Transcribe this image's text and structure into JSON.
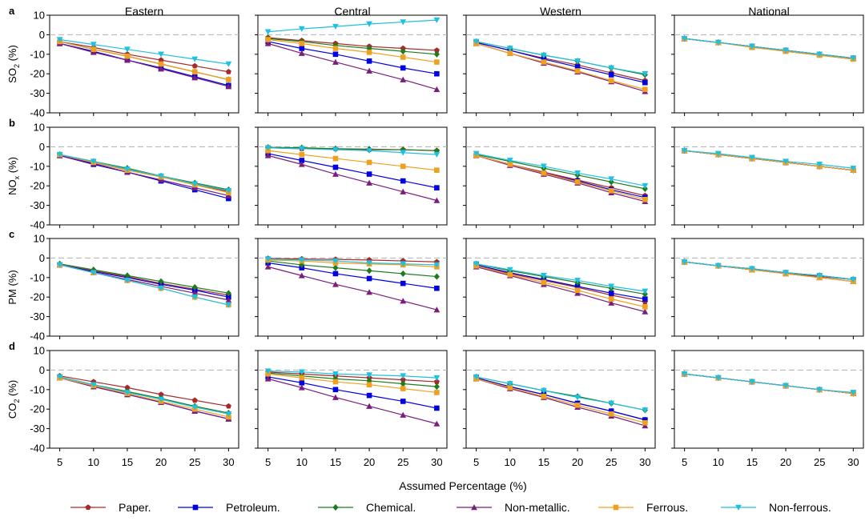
{
  "chart_data": {
    "type": "line",
    "columns": [
      "Eastern",
      "Central",
      "Western",
      "National"
    ],
    "row_letters": [
      "a",
      "b",
      "c",
      "d"
    ],
    "row_ylabels": [
      {
        "base": "SO",
        "sub": "2",
        "unit": " (%)"
      },
      {
        "base": "NO",
        "sub": "x",
        "unit": " (%)"
      },
      {
        "base": "PM",
        "sub": "",
        "unit": " (%)"
      },
      {
        "base": "CO",
        "sub": "2",
        "unit": " (%)"
      }
    ],
    "ylim": [
      -40,
      10
    ],
    "yticks": [
      10,
      0,
      -10,
      -20,
      -30,
      -40
    ],
    "x": [
      5,
      10,
      15,
      20,
      25,
      30
    ],
    "xticks": [
      5,
      10,
      15,
      20,
      25,
      30
    ],
    "xlabel": "Assumed Percentage (%)",
    "reference_line": 0,
    "series_meta": [
      {
        "name": "Paper.",
        "color": "#a52a2a",
        "marker": "pentagon"
      },
      {
        "name": "Petroleum.",
        "color": "#0000e0",
        "marker": "square"
      },
      {
        "name": "Chemical.",
        "color": "#1e7b1e",
        "marker": "diamond"
      },
      {
        "name": "Non-metallic.",
        "color": "#7b1e7b",
        "marker": "triangle-up"
      },
      {
        "name": "Ferrous.",
        "color": "#f0a020",
        "marker": "x-square"
      },
      {
        "name": "Non-ferrous.",
        "color": "#20c0e0",
        "marker": "triangle-down"
      }
    ],
    "panels": [
      [
        [
          [
            -3.5,
            -6.5,
            -10,
            -13,
            -16,
            -19
          ],
          [
            -4.5,
            -8.5,
            -13,
            -17,
            -21.5,
            -26
          ],
          [
            -3.5,
            -7.5,
            -11,
            -15,
            -19,
            -23
          ],
          [
            -4.5,
            -9,
            -13,
            -17.5,
            -22,
            -26.5
          ],
          [
            -3.5,
            -7.5,
            -11,
            -15,
            -19,
            -23
          ],
          [
            -2.5,
            -5,
            -7.5,
            -10,
            -12.5,
            -15
          ]
        ],
        [
          [
            -1.5,
            -3,
            -4.5,
            -6,
            -7,
            -8
          ],
          [
            -3.5,
            -7,
            -10,
            -13.5,
            -17,
            -20
          ],
          [
            -2,
            -3.5,
            -5.5,
            -7,
            -8.5,
            -10
          ],
          [
            -4.5,
            -9.5,
            -14,
            -18.5,
            -23,
            -28
          ],
          [
            -2.5,
            -4.5,
            -7,
            -9,
            -11.5,
            -14
          ],
          [
            1.5,
            3,
            4.2,
            5.5,
            6.5,
            7.5
          ]
        ],
        [
          [
            -4,
            -8,
            -12,
            -15.5,
            -19.5,
            -23.5
          ],
          [
            -4,
            -8,
            -12.5,
            -16.5,
            -20.5,
            -24.5
          ],
          [
            -3.5,
            -7,
            -10.5,
            -13.5,
            -17,
            -20.5
          ],
          [
            -4.5,
            -9.5,
            -14.5,
            -19,
            -24,
            -29
          ],
          [
            -4.5,
            -9.5,
            -14,
            -18.5,
            -23.5,
            -28
          ],
          [
            -3.5,
            -7,
            -10.5,
            -13.5,
            -17,
            -20
          ]
        ],
        [
          [
            -2,
            -4,
            -6,
            -8.5,
            -10.5,
            -12.5
          ],
          [
            -2,
            -4,
            -6,
            -8,
            -10,
            -12
          ],
          [
            -2,
            -4,
            -6,
            -8,
            -10,
            -12
          ],
          [
            -2,
            -4,
            -6,
            -8,
            -10,
            -12
          ],
          [
            -2,
            -4,
            -6.5,
            -8.5,
            -10.5,
            -12.5
          ],
          [
            -2,
            -4,
            -6,
            -8,
            -10,
            -12
          ]
        ]
      ],
      [
        [
          [
            -4,
            -8,
            -12,
            -15,
            -19,
            -23
          ],
          [
            -4.5,
            -9,
            -13,
            -17.5,
            -22,
            -26.5
          ],
          [
            -4,
            -7.5,
            -11,
            -15,
            -18.5,
            -22
          ],
          [
            -4.5,
            -8.5,
            -13,
            -17,
            -21,
            -25
          ],
          [
            -4,
            -8,
            -12,
            -15.5,
            -19.5,
            -23.5
          ],
          [
            -4,
            -7.5,
            -11.5,
            -15,
            -19,
            -22.5
          ]
        ],
        [
          [
            -0.5,
            -1,
            -1,
            -1.5,
            -1.5,
            -2
          ],
          [
            -3.5,
            -7,
            -10.5,
            -14,
            -17.5,
            -21
          ],
          [
            -0.3,
            -0.5,
            -1,
            -1.2,
            -1.5,
            -2
          ],
          [
            -4.5,
            -9,
            -14,
            -18.5,
            -23,
            -27.5
          ],
          [
            -2,
            -4,
            -6,
            -8,
            -10,
            -12
          ],
          [
            -0.5,
            -1,
            -1.5,
            -2,
            -3,
            -4
          ]
        ],
        [
          [
            -4.5,
            -9,
            -13,
            -17,
            -21,
            -25
          ],
          [
            -4.5,
            -9,
            -13.5,
            -17.5,
            -22,
            -26
          ],
          [
            -4,
            -7.5,
            -11,
            -14.5,
            -18,
            -21.5
          ],
          [
            -4.5,
            -9.5,
            -14,
            -18.5,
            -23.5,
            -28
          ],
          [
            -4.5,
            -9,
            -13.5,
            -18,
            -22.5,
            -27
          ],
          [
            -3.5,
            -7,
            -10,
            -13.5,
            -16.5,
            -20
          ]
        ],
        [
          [
            -2,
            -4,
            -6,
            -8,
            -10,
            -12
          ],
          [
            -2,
            -4,
            -6,
            -8,
            -10,
            -12
          ],
          [
            -2,
            -4,
            -6,
            -8,
            -10,
            -12
          ],
          [
            -2,
            -4,
            -6,
            -8,
            -10,
            -12
          ],
          [
            -2,
            -4,
            -6,
            -8,
            -10,
            -12
          ],
          [
            -2,
            -3.5,
            -5.5,
            -7.5,
            -9,
            -11
          ]
        ]
      ],
      [
        [
          [
            -3.5,
            -6.5,
            -9.5,
            -13,
            -16,
            -19
          ],
          [
            -3.5,
            -7,
            -10,
            -13.5,
            -16.5,
            -20
          ],
          [
            -3,
            -6,
            -9,
            -12,
            -15,
            -18
          ],
          [
            -3.5,
            -7.5,
            -11,
            -14.5,
            -18,
            -21.5
          ],
          [
            -3.5,
            -7.5,
            -11.5,
            -15.5,
            -20,
            -24
          ],
          [
            -3.5,
            -7.5,
            -11.5,
            -15.5,
            -20,
            -24
          ]
        ],
        [
          [
            -0.2,
            -0.5,
            -0.7,
            -1,
            -1.5,
            -2
          ],
          [
            -2.5,
            -5,
            -8,
            -10.5,
            -13,
            -15.5
          ],
          [
            -1.5,
            -3.5,
            -5,
            -6.5,
            -8,
            -9.5
          ],
          [
            -4.5,
            -9,
            -13.5,
            -17.5,
            -22,
            -26.5
          ],
          [
            -1,
            -1.5,
            -2.5,
            -3,
            -3.5,
            -4.5
          ],
          [
            -0.5,
            -1,
            -1.5,
            -2.5,
            -3,
            -3.5
          ]
        ],
        [
          [
            -4,
            -8,
            -11.5,
            -15,
            -19,
            -22.5
          ],
          [
            -3.5,
            -7.5,
            -11,
            -14.5,
            -18,
            -21
          ],
          [
            -3,
            -6.5,
            -9.5,
            -12.5,
            -15.5,
            -18.5
          ],
          [
            -4.5,
            -9,
            -13.5,
            -18,
            -23,
            -27.5
          ],
          [
            -4,
            -8.5,
            -12.5,
            -16.5,
            -21,
            -25
          ],
          [
            -3,
            -6,
            -9,
            -11.5,
            -14.5,
            -17
          ]
        ],
        [
          [
            -2,
            -4,
            -6,
            -7.5,
            -9.5,
            -11
          ],
          [
            -2,
            -4,
            -5.5,
            -7.5,
            -9,
            -11
          ],
          [
            -2,
            -4,
            -5.5,
            -7.5,
            -9,
            -11
          ],
          [
            -2,
            -4,
            -6,
            -8,
            -10,
            -12
          ],
          [
            -2,
            -4,
            -6,
            -8,
            -10,
            -12
          ],
          [
            -2,
            -4,
            -5.5,
            -7.5,
            -9,
            -11
          ]
        ]
      ],
      [
        [
          [
            -3,
            -6,
            -9,
            -12.5,
            -15.5,
            -18.5
          ],
          [
            -4,
            -8.5,
            -12.5,
            -16.5,
            -21,
            -25
          ],
          [
            -3.5,
            -7.5,
            -11,
            -14.5,
            -18.5,
            -22
          ],
          [
            -4,
            -8.5,
            -12.5,
            -16.5,
            -21,
            -25
          ],
          [
            -4,
            -8,
            -12,
            -16,
            -20,
            -24
          ],
          [
            -3.5,
            -7.5,
            -11.5,
            -15,
            -19,
            -22.5
          ]
        ],
        [
          [
            -1,
            -2,
            -3,
            -4,
            -5,
            -6
          ],
          [
            -3.5,
            -6.5,
            -10,
            -13,
            -16,
            -19.5
          ],
          [
            -1.5,
            -3,
            -4.5,
            -5.5,
            -7,
            -8.5
          ],
          [
            -4.5,
            -9,
            -14,
            -18.5,
            -23,
            -27.5
          ],
          [
            -2,
            -4,
            -6,
            -7.5,
            -9.5,
            -11.5
          ],
          [
            -0.5,
            -1,
            -2,
            -2.5,
            -3,
            -4
          ]
        ],
        [
          [
            -4,
            -8.5,
            -12.5,
            -17,
            -21,
            -25.5
          ],
          [
            -4,
            -8.5,
            -12.5,
            -17,
            -21,
            -25.5
          ],
          [
            -3.5,
            -7,
            -10.5,
            -13.5,
            -17,
            -20.5
          ],
          [
            -4.5,
            -9.5,
            -14,
            -19,
            -23.5,
            -28.5
          ],
          [
            -4.5,
            -9,
            -13.5,
            -18,
            -22.5,
            -27
          ],
          [
            -3.5,
            -7,
            -10.5,
            -14,
            -17,
            -20.5
          ]
        ],
        [
          [
            -2,
            -4,
            -6,
            -8,
            -10,
            -12
          ],
          [
            -2,
            -4,
            -6,
            -8,
            -10,
            -12
          ],
          [
            -2,
            -4,
            -6,
            -8,
            -10,
            -12
          ],
          [
            -2,
            -4,
            -6,
            -8,
            -10,
            -12
          ],
          [
            -2,
            -4,
            -6,
            -8,
            -10,
            -12
          ],
          [
            -2,
            -4,
            -6,
            -8,
            -10,
            -11.5
          ]
        ]
      ]
    ]
  }
}
